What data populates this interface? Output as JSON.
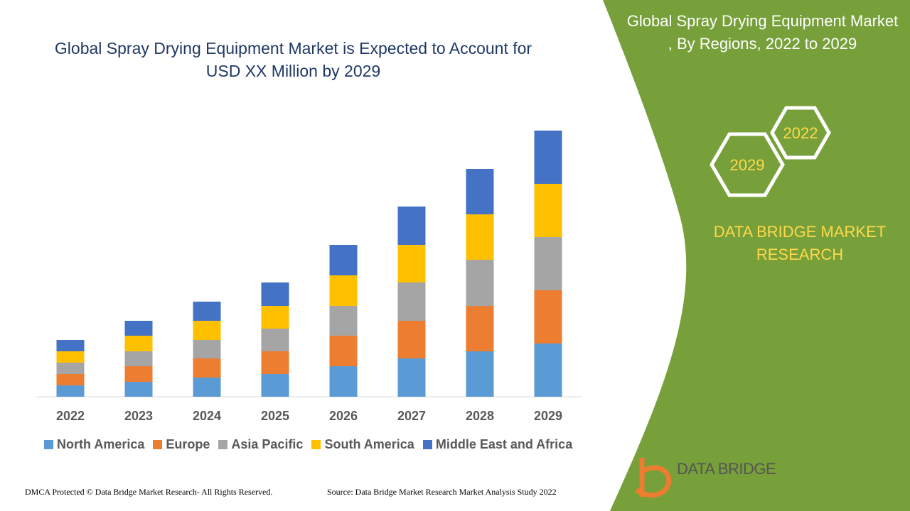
{
  "chart_data": {
    "type": "bar",
    "stacked": true,
    "title": "Global Spray Drying Equipment Market is Expected to Account for USD XX Million by 2029",
    "categories": [
      "2022",
      "2023",
      "2024",
      "2025",
      "2026",
      "2027",
      "2028",
      "2029"
    ],
    "series": [
      {
        "name": "North America",
        "color": "#5b9bd5",
        "values": [
          16,
          21,
          27,
          32,
          43,
          54,
          64,
          75
        ]
      },
      {
        "name": "Europe",
        "color": "#ed7d31",
        "values": [
          16,
          22,
          27,
          32,
          43,
          53,
          64,
          75
        ]
      },
      {
        "name": "Asia Pacific",
        "color": "#a5a5a5",
        "values": [
          16,
          21,
          26,
          32,
          42,
          54,
          65,
          75
        ]
      },
      {
        "name": "South America",
        "color": "#ffc000",
        "values": [
          16,
          22,
          27,
          32,
          43,
          53,
          64,
          75
        ]
      },
      {
        "name": "Middle East and Africa",
        "color": "#4472c4",
        "values": [
          16,
          21,
          27,
          33,
          43,
          54,
          64,
          75
        ]
      }
    ],
    "legend": "bottom"
  },
  "panel": {
    "title": "Global Spray Drying Equipment Market , By Regions, 2022 to 2029",
    "hex_top": "2022",
    "hex_bottom": "2029",
    "brand": "DATA BRIDGE MARKET RESEARCH"
  },
  "logo": "DATA BRIDGE",
  "footer": {
    "left": "DMCA Protected © Data Bridge Market Research- All Rights Reserved.",
    "right": "Source: Data Bridge Market Research Market Analysis Study 2022"
  }
}
